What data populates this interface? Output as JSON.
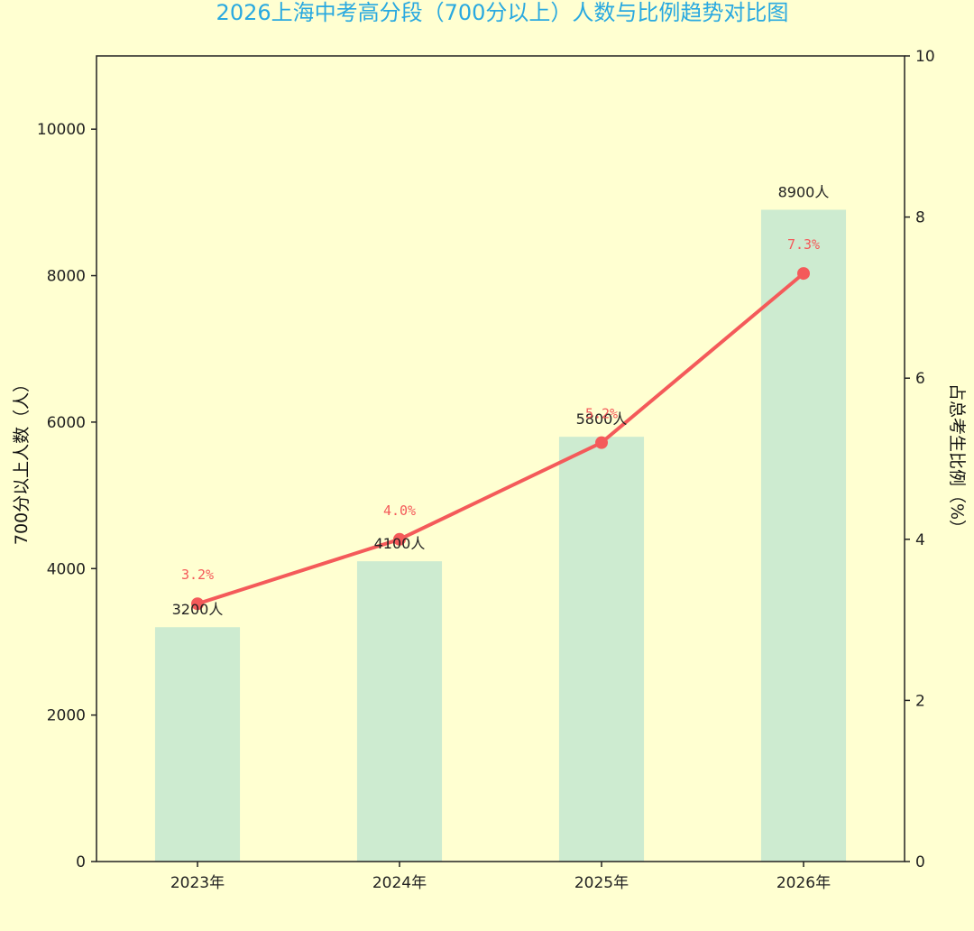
{
  "chart_data": {
    "type": "bar",
    "title": "2026上海中考高分段（700分以上）人数与比例趋势对比图",
    "categories": [
      "2023年",
      "2024年",
      "2025年",
      "2026年"
    ],
    "series": [
      {
        "values": [
          3200,
          4100,
          5800,
          8900
        ],
        "data_labels": [
          "3200人",
          "4100人",
          "5800人",
          "8900人"
        ],
        "axis": "left",
        "chart_type": "bar",
        "color": "#CDEBD0"
      },
      {
        "values": [
          3.2,
          4.0,
          5.2,
          7.3
        ],
        "data_labels": [
          "3.2%",
          "4.0%",
          "5.2%",
          "7.3%"
        ],
        "axis": "right",
        "chart_type": "line",
        "color": "#F45A5A"
      }
    ],
    "ylabel": "700分以上人数（人）",
    "ylabel_right": "占总考生比例（%）",
    "ylim": [
      0,
      11000
    ],
    "ylim_right": [
      0,
      10
    ],
    "yticks": [
      0,
      2000,
      4000,
      6000,
      8000,
      10000
    ],
    "yticks_right": [
      0,
      2,
      4,
      6,
      8,
      10
    ],
    "grid": false,
    "background": "#FFFFD1"
  }
}
